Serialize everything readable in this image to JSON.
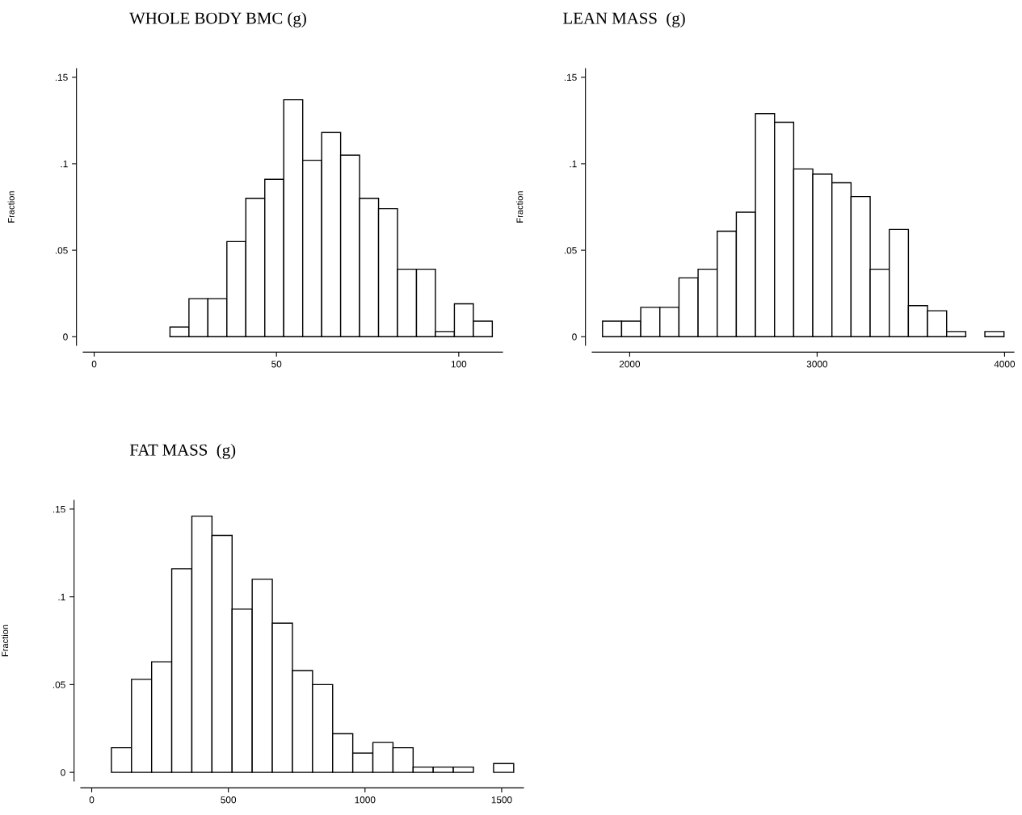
{
  "chart_data": [
    {
      "type": "histogram",
      "title": "WHOLE BODY BMC (g)",
      "ylabel": "Fraction",
      "color": "#ffffff",
      "bins": [
        20.8,
        26.0,
        31.2,
        36.4,
        41.6,
        46.8,
        52.0,
        57.2,
        62.4,
        67.6,
        72.8,
        78.0,
        83.2,
        88.4,
        93.6,
        98.8,
        104.0,
        109.2
      ],
      "values": [
        0.0056,
        0.022,
        0.022,
        0.055,
        0.08,
        0.091,
        0.137,
        0.102,
        0.118,
        0.105,
        0.08,
        0.074,
        0.039,
        0.039,
        0.003,
        0.019,
        0.009
      ],
      "xlim": [
        -3,
        112
      ],
      "xticks": [
        0,
        50,
        100
      ],
      "ylim": [
        -0.005,
        0.155
      ],
      "yticks": [
        0,
        {
          "value": 0.05,
          "label": ".05"
        },
        {
          "value": 0.1,
          "label": ".1"
        },
        {
          "value": 0.15,
          "label": ".15"
        }
      ],
      "grid": false
    },
    {
      "type": "histogram",
      "title": "LEAN MASS  (g)",
      "ylabel": "Fraction",
      "color": "#ffffff",
      "bins": [
        1855,
        1957,
        2059,
        2161,
        2263,
        2365,
        2467,
        2569,
        2671,
        2773,
        2875,
        2977,
        3079,
        3181,
        3283,
        3385,
        3487,
        3589,
        3691,
        3793,
        3895,
        3997
      ],
      "values": [
        0.009,
        0.009,
        0.017,
        0.017,
        0.034,
        0.039,
        0.061,
        0.072,
        0.129,
        0.124,
        0.097,
        0.094,
        0.089,
        0.081,
        0.039,
        0.062,
        0.018,
        0.015,
        0.003,
        0,
        0.003
      ],
      "xlim": [
        1800,
        4050
      ],
      "xticks": [
        2000,
        3000,
        4000
      ],
      "ylim": [
        -0.005,
        0.155
      ],
      "yticks": [
        0,
        {
          "value": 0.05,
          "label": ".05"
        },
        {
          "value": 0.1,
          "label": ".1"
        },
        {
          "value": 0.15,
          "label": ".15"
        }
      ],
      "grid": false
    },
    {
      "type": "histogram",
      "title": "FAT MASS  (g)",
      "ylabel": "Fraction",
      "color": "#ffffff",
      "bins": [
        72,
        145.6,
        219.2,
        292.8,
        366.4,
        440,
        513.6,
        587.2,
        660.8,
        734.4,
        808,
        881.6,
        955.2,
        1028.8,
        1102.4,
        1176,
        1249.6,
        1323.2,
        1396.8,
        1470.4,
        1544
      ],
      "values": [
        0.014,
        0.053,
        0.063,
        0.116,
        0.146,
        0.135,
        0.093,
        0.11,
        0.085,
        0.058,
        0.05,
        0.022,
        0.011,
        0.017,
        0.014,
        0.003,
        0.003,
        0.003,
        0,
        0.005
      ],
      "xlim": [
        -40,
        1580
      ],
      "xticks": [
        0,
        500,
        1000,
        1500
      ],
      "ylim": [
        -0.005,
        0.155
      ],
      "yticks": [
        0,
        {
          "value": 0.05,
          "label": ".05"
        },
        {
          "value": 0.1,
          "label": ".1"
        },
        {
          "value": 0.15,
          "label": ".15"
        }
      ],
      "grid": false
    }
  ]
}
